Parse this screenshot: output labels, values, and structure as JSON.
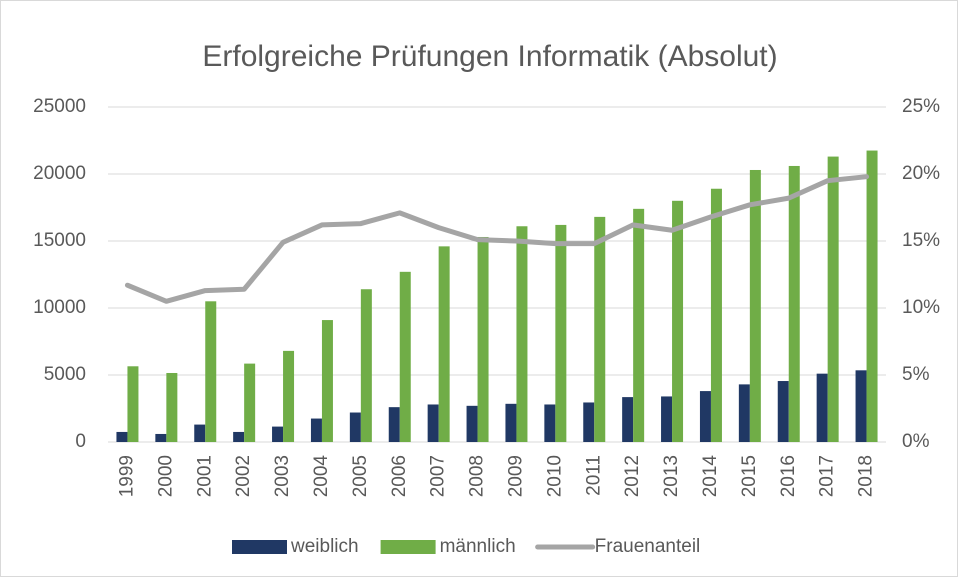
{
  "chart_data": {
    "type": "bar_line",
    "title": "Erfolgreiche Prüfungen Informatik (Absolut)",
    "categories": [
      "1999",
      "2000",
      "2001",
      "2002",
      "2003",
      "2004",
      "2005",
      "2006",
      "2007",
      "2008",
      "2009",
      "2010",
      "2011",
      "2012",
      "2013",
      "2014",
      "2015",
      "2016",
      "2017",
      "2018"
    ],
    "series": [
      {
        "name": "weiblich",
        "type": "bar",
        "color": "#203864",
        "values": [
          750,
          600,
          1300,
          750,
          1150,
          1750,
          2200,
          2600,
          2800,
          2700,
          2850,
          2800,
          2950,
          3350,
          3400,
          3800,
          4300,
          4550,
          5100,
          5350
        ]
      },
      {
        "name": "männlich",
        "type": "bar",
        "color": "#70ad47",
        "values": [
          5650,
          5150,
          10500,
          5850,
          6800,
          9100,
          11400,
          12700,
          14600,
          15300,
          16100,
          16200,
          16800,
          17400,
          18000,
          18900,
          20300,
          20600,
          21300,
          21750
        ]
      },
      {
        "name": "Frauenanteil",
        "type": "line",
        "axis": "y2",
        "color": "#a5a5a5",
        "values": [
          11.7,
          10.5,
          11.3,
          11.4,
          14.9,
          16.2,
          16.3,
          17.1,
          16.0,
          15.1,
          15.0,
          14.8,
          14.8,
          16.2,
          15.8,
          16.8,
          17.7,
          18.2,
          19.5,
          19.8
        ]
      }
    ],
    "ylim": [
      0,
      25000
    ],
    "yticks": [
      0,
      5000,
      10000,
      15000,
      20000,
      25000
    ],
    "y2lim": [
      0,
      25
    ],
    "y2ticks": [
      {
        "value": 0,
        "label": "0%"
      },
      {
        "value": 5,
        "label": "5%"
      },
      {
        "value": 10,
        "label": "10%"
      },
      {
        "value": 15,
        "label": "15%"
      },
      {
        "value": 20,
        "label": "20%"
      },
      {
        "value": 25,
        "label": "25%"
      }
    ],
    "grid": true,
    "legend": "bottom"
  }
}
